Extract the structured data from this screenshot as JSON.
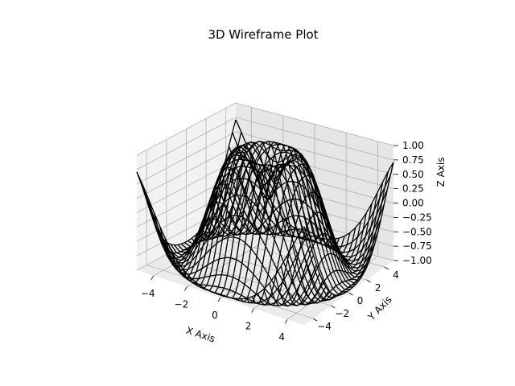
{
  "chart_data": {
    "type": "wireframe-3d",
    "title": "3D Wireframe Plot",
    "xlabel": "X Axis",
    "ylabel": "Y Axis",
    "zlabel": "Z Axis",
    "function": "z = sin(sqrt(x^2 + y^2))",
    "x_range": [
      -5,
      5
    ],
    "y_range": [
      -5,
      5
    ],
    "z_range": [
      -1,
      1
    ],
    "grid_samples": 30,
    "x_ticks": [
      -4,
      -2,
      0,
      2,
      4
    ],
    "x_tick_labels": [
      "−4",
      "−2",
      "0",
      "2",
      "4"
    ],
    "y_ticks": [
      -4,
      -2,
      0,
      2,
      4
    ],
    "y_tick_labels": [
      "−4",
      "−2",
      "0",
      "2",
      "4"
    ],
    "z_ticks": [
      -1.0,
      -0.75,
      -0.5,
      -0.25,
      0.0,
      0.25,
      0.5,
      0.75,
      1.0
    ],
    "z_tick_labels": [
      "−1.00",
      "−0.75",
      "−0.50",
      "−0.25",
      "0.00",
      "0.25",
      "0.50",
      "0.75",
      "1.00"
    ],
    "grid": true,
    "line_color": "#000000",
    "pane_colors": {
      "left": "#f2f2f2",
      "right": "#e6e6e6",
      "bottom": "#ebebeb"
    }
  }
}
